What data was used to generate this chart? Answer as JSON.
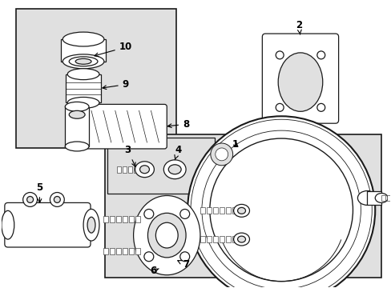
{
  "bg_color": "#ffffff",
  "box_fill": "#e0e0e0",
  "line_color": "#1a1a1a",
  "lw": 0.9,
  "fig_w": 4.89,
  "fig_h": 3.6,
  "dpi": 100
}
